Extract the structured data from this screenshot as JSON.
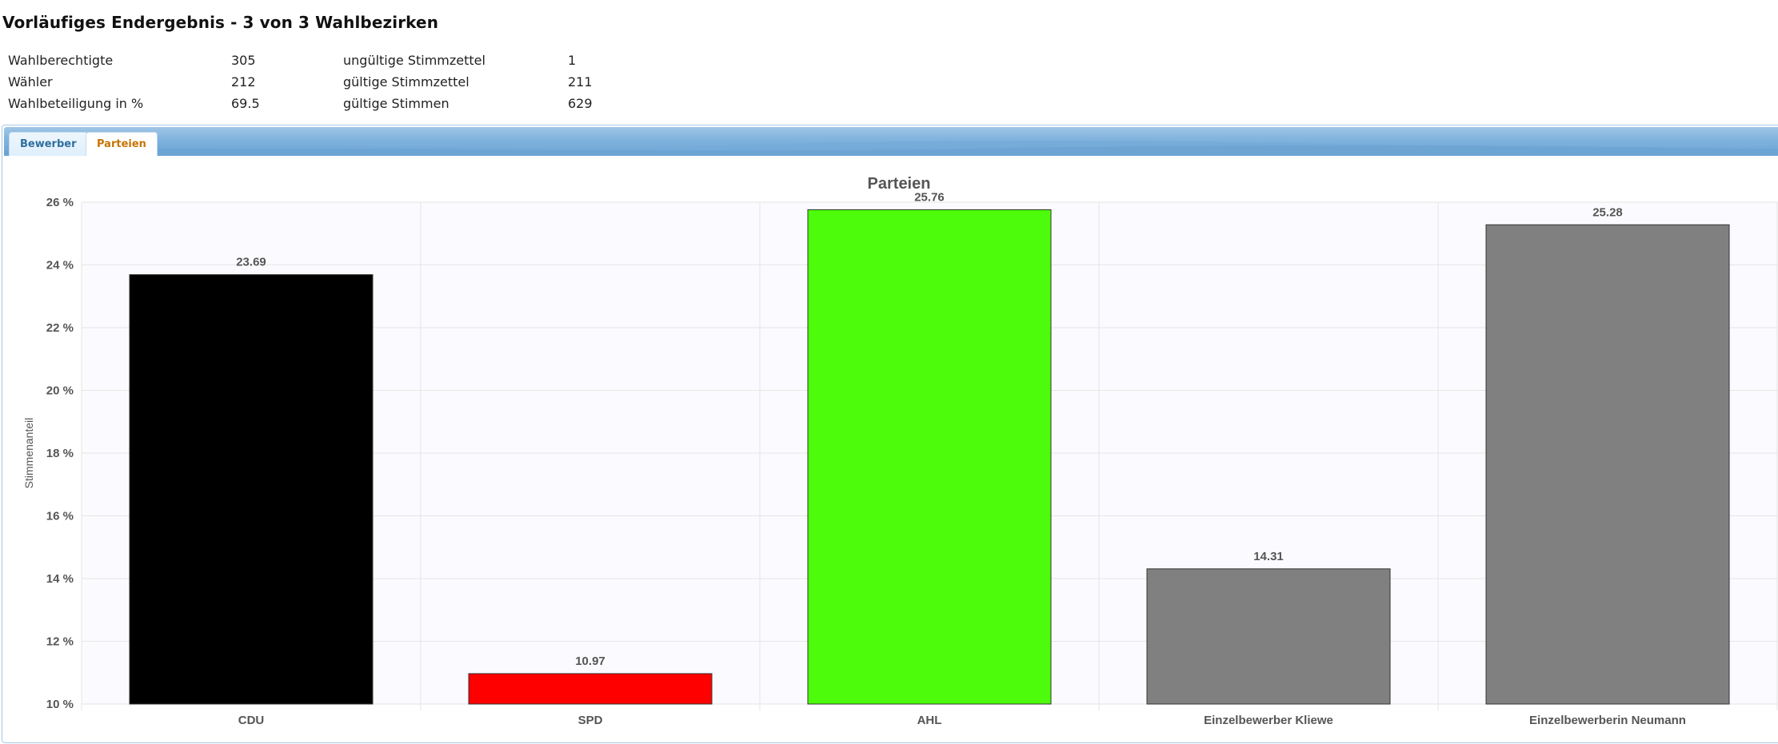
{
  "page": {
    "title": "Vorläufiges Endergebnis - 3 von 3 Wahlbezirken"
  },
  "stats": [
    {
      "label": "Wahlberechtigte",
      "value": "305",
      "label2": "ungültige Stimmzettel",
      "value2": "1"
    },
    {
      "label": "Wähler",
      "value": "212",
      "label2": "gültige Stimmzettel",
      "value2": "211"
    },
    {
      "label": "Wahlbeteiligung in %",
      "value": "69.5",
      "label2": "gültige Stimmen",
      "value2": "629"
    }
  ],
  "tabs": [
    {
      "label": "Bewerber",
      "active": false
    },
    {
      "label": "Parteien",
      "active": true
    }
  ],
  "colors": {
    "title_text": "#555555",
    "label_text": "#555555",
    "grid": "#e6e6e6",
    "plot_bg": "#fbfbff",
    "tab_active_text": "#c77405",
    "tab_inactive_text": "#2e6e9e"
  },
  "chart_data": {
    "type": "bar",
    "title": "Parteien",
    "xlabel": "",
    "ylabel": "Stimmenanteil",
    "ylim": [
      10,
      26
    ],
    "yticks": [
      10,
      12,
      14,
      16,
      18,
      20,
      22,
      24,
      26
    ],
    "ytick_suffix": " %",
    "grid": true,
    "categories": [
      "CDU",
      "SPD",
      "AHL",
      "Einzelbewerber Kliewe",
      "Einzelbewerberin Neumann"
    ],
    "values": [
      23.69,
      10.97,
      25.76,
      14.31,
      25.28
    ],
    "data_labels": [
      "23.69",
      "10.97",
      "25.76",
      "14.31",
      "25.28"
    ],
    "bar_colors": [
      "#000000",
      "#ff0000",
      "#4cfc0a",
      "#808080",
      "#808080"
    ]
  }
}
